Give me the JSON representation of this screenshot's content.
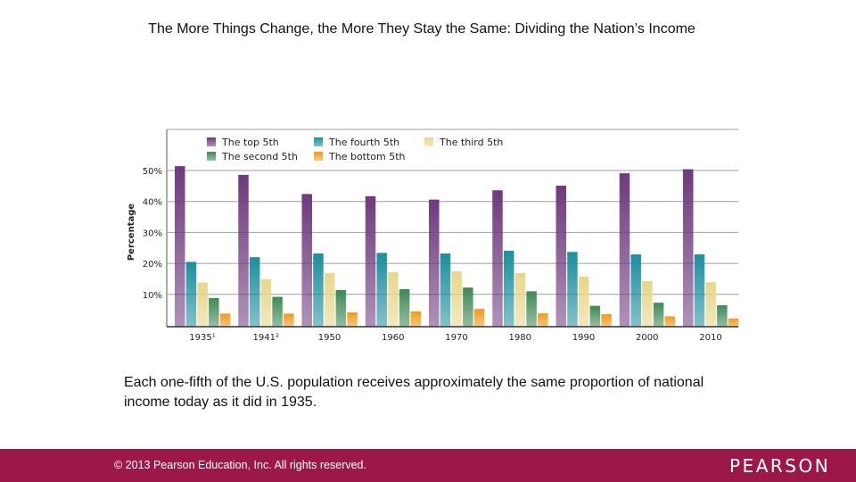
{
  "title": "The More Things Change, the More They Stay the Same: Dividing the Nation’s Income",
  "caption": "Each one-fifth of the U.S. population receives approximately the same proportion of national income today as it did in 1935.",
  "footer": {
    "copyright": "© 2013  Pearson Education, Inc. All rights reserved.",
    "logo": "PEARSON",
    "color": "#9c1848"
  },
  "chart_data": {
    "type": "bar",
    "ylabel": "Percentage",
    "ylim": [
      0,
      60
    ],
    "yticks": [
      "10%",
      "20%",
      "30%",
      "40%",
      "50%"
    ],
    "grid": true,
    "legend": "top",
    "categories": [
      "1935¹",
      "1941²",
      "1950",
      "1960",
      "1970",
      "1980",
      "1990",
      "2000",
      "2010"
    ],
    "series": [
      {
        "name": "The top 5th",
        "color": "#6e3a7e",
        "values": [
          51.4,
          48.6,
          42.4,
          41.7,
          40.6,
          43.6,
          45.1,
          49.1,
          50.4
        ]
      },
      {
        "name": "The fourth 5th",
        "color": "#1d8f9e",
        "values": [
          20.5,
          22.0,
          23.2,
          23.4,
          23.2,
          24.1,
          23.7,
          22.9,
          22.9
        ]
      },
      {
        "name": "The third 5th",
        "color": "#e8d68a",
        "values": [
          13.8,
          14.9,
          16.9,
          17.2,
          17.4,
          16.9,
          15.7,
          14.3,
          13.9
        ]
      },
      {
        "name": "The second 5th",
        "color": "#3f8a55",
        "values": [
          8.8,
          9.2,
          11.4,
          11.7,
          12.2,
          11.0,
          6.3,
          7.3,
          6.5
        ]
      },
      {
        "name": "The bottom 5th",
        "color": "#f29a1a",
        "values": [
          3.8,
          3.8,
          4.2,
          4.5,
          5.3,
          3.9,
          3.6,
          2.9,
          2.2
        ]
      }
    ]
  }
}
